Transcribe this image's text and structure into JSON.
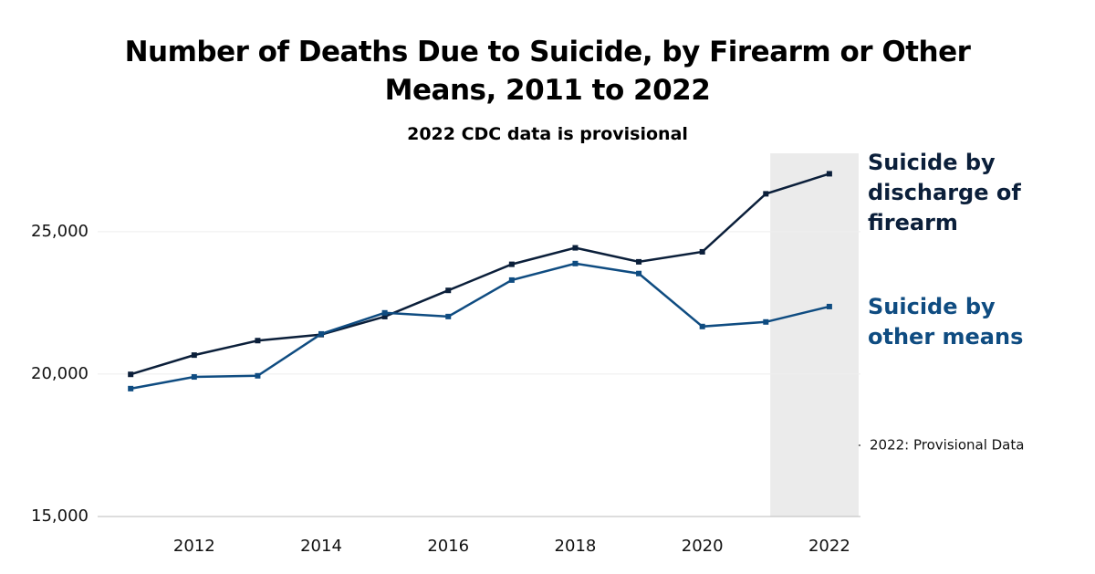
{
  "chart_data": {
    "type": "line",
    "title": "Number of Deaths Due to Suicide, by Firearm or Other Means, 2011 to 2022",
    "subtitle": "2022 CDC data is provisional",
    "annotation": "2022: Provisional Data",
    "x": [
      2011,
      2012,
      2013,
      2014,
      2015,
      2016,
      2017,
      2018,
      2019,
      2020,
      2021,
      2022
    ],
    "series": [
      {
        "name": "Suicide by discharge of firearm",
        "color": "#0b1f3a",
        "values": [
          19990,
          20666,
          21175,
          21386,
          22018,
          22938,
          23854,
          24432,
          23941,
          24292,
          26328,
          27032
        ]
      },
      {
        "name": "Suicide by other means",
        "color": "#0f4c81",
        "values": [
          19490,
          19900,
          19940,
          21410,
          22150,
          22020,
          23300,
          23880,
          23530,
          21670,
          21830,
          22370
        ]
      }
    ],
    "xlim": [
      2010.48,
      2022.49
    ],
    "xticks": [
      2012,
      2014,
      2016,
      2018,
      2020,
      2022
    ],
    "ylim": [
      15000,
      27750
    ],
    "yticks": [
      {
        "value": 15000,
        "label": "15,000"
      },
      {
        "value": 20000,
        "label": "20,000"
      },
      {
        "value": 25000,
        "label": "25,000"
      }
    ],
    "shaded_range": [
      2021.07,
      2022.46
    ],
    "grid": true
  }
}
